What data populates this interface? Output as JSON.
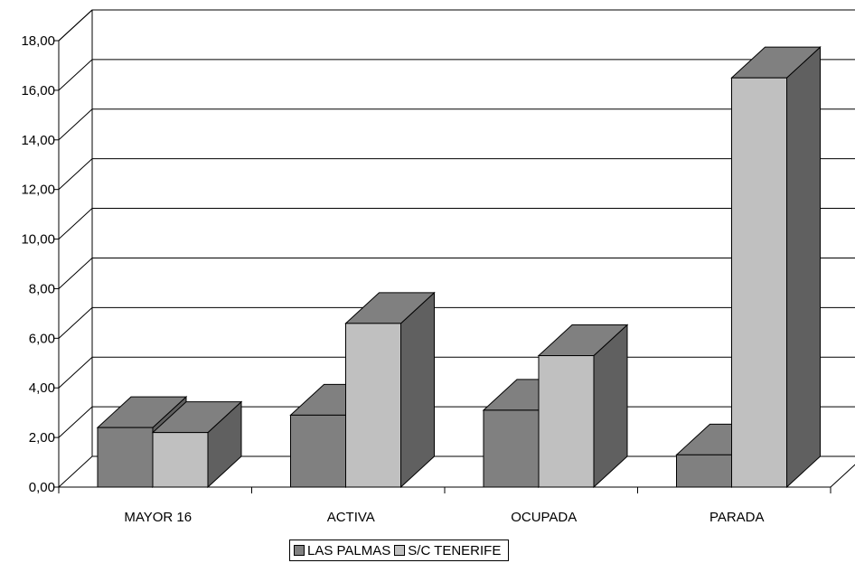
{
  "chart_data": {
    "type": "bar",
    "categories": [
      "MAYOR 16",
      "ACTIVA",
      "OCUPADA",
      "PARADA"
    ],
    "series": [
      {
        "name": "LAS PALMAS",
        "values": [
          2.4,
          2.9,
          3.1,
          1.3
        ],
        "color": "#808080"
      },
      {
        "name": "S/C TENERIFE",
        "values": [
          2.2,
          6.6,
          5.3,
          16.5
        ],
        "color": "#c0c0c0"
      }
    ],
    "ylim": [
      0,
      18
    ],
    "yticks": [
      "0,00",
      "2,00",
      "4,00",
      "6,00",
      "8,00",
      "10,00",
      "12,00",
      "14,00",
      "16,00",
      "18,00"
    ],
    "grid": true,
    "legend_position": "bottom",
    "style": "3d-column",
    "colors": {
      "back_wall_lines": "#000000",
      "side_face": "#606060",
      "top_face": "#808080"
    }
  }
}
